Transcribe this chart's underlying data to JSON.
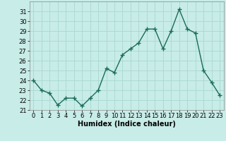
{
  "x": [
    0,
    1,
    2,
    3,
    4,
    5,
    6,
    7,
    8,
    9,
    10,
    11,
    12,
    13,
    14,
    15,
    16,
    17,
    18,
    19,
    20,
    21,
    22,
    23
  ],
  "y": [
    24.0,
    23.0,
    22.7,
    21.5,
    22.2,
    22.2,
    21.4,
    22.2,
    23.0,
    25.2,
    24.8,
    26.6,
    27.2,
    27.8,
    29.2,
    29.2,
    27.2,
    29.0,
    31.2,
    29.2,
    28.8,
    25.0,
    23.8,
    22.5
  ],
  "line_color": "#1a6b5a",
  "marker": "+",
  "marker_size": 4,
  "bg_color": "#c8ece8",
  "grid_color": "#a8d8d0",
  "xlabel": "Humidex (Indice chaleur)",
  "xlim": [
    -0.5,
    23.5
  ],
  "ylim": [
    21,
    32
  ],
  "yticks": [
    21,
    22,
    23,
    24,
    25,
    26,
    27,
    28,
    29,
    30,
    31
  ],
  "xticks": [
    0,
    1,
    2,
    3,
    4,
    5,
    6,
    7,
    8,
    9,
    10,
    11,
    12,
    13,
    14,
    15,
    16,
    17,
    18,
    19,
    20,
    21,
    22,
    23
  ],
  "xlabel_fontsize": 7,
  "tick_fontsize": 6,
  "line_width": 1.0,
  "marker_edge_width": 1.0
}
